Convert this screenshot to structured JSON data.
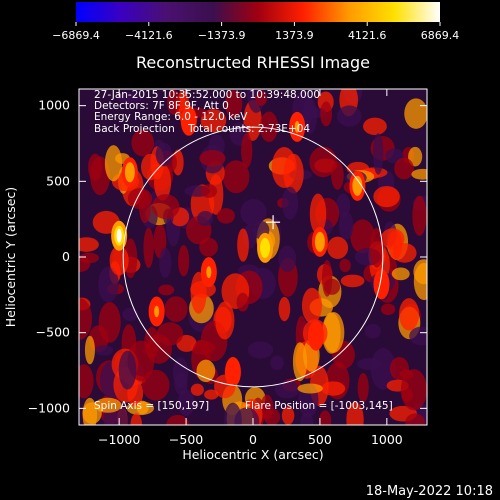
{
  "chart_data": {
    "type": "heatmap",
    "title": "Reconstructed RHESSI Image",
    "xlabel": "Heliocentric X (arcsec)",
    "ylabel": "Heliocentric Y (arcsec)",
    "xlim": [
      -1300,
      1300
    ],
    "ylim": [
      -1110,
      1110
    ],
    "x_ticks": [
      -1000,
      -500,
      0,
      500,
      1000
    ],
    "y_ticks": [
      -1000,
      -500,
      0,
      500,
      1000
    ],
    "colorbar": {
      "min": -6869.4,
      "max": 6869.4,
      "ticks": [
        "-6869.4",
        "-4121.6",
        "-1373.9",
        "1373.9",
        "4121.6",
        "6869.4"
      ],
      "colors": [
        "#0000ff",
        "#3a00c0",
        "#4a1070",
        "#3b0f4f",
        "#a00010",
        "#ff2000",
        "#ff9a00",
        "#ffe000",
        "#ffffff"
      ]
    },
    "annotations": [
      "27-Jan-2015 10:35:52.000 to 10:39:48.000",
      "Detectors: 7F 8F 9F, Att 0",
      "Energy Range: 6.0 - 12.0 keV",
      "Back Projection    Total counts: 2.73E+04"
    ],
    "spin_axis": "Spin Axis = [150,197]",
    "flare_position": "Flare Position = [-1003,145]",
    "solar_disk": {
      "center": [
        0,
        0
      ],
      "radius_arcsec": 970
    },
    "crosshair": {
      "x": 150,
      "y": 230
    },
    "bright_sources": [
      {
        "x": -1000,
        "y": 140,
        "intensity": 6500
      },
      {
        "x": 90,
        "y": 60,
        "intensity": 5800
      },
      {
        "x": 500,
        "y": 100,
        "intensity": 4200
      },
      {
        "x": -920,
        "y": 560,
        "intensity": 3500
      },
      {
        "x": 780,
        "y": 470,
        "intensity": 3600
      },
      {
        "x": -330,
        "y": -100,
        "intensity": 3200
      },
      {
        "x": 330,
        "y": 860,
        "intensity": 2800
      },
      {
        "x": -720,
        "y": -360,
        "intensity": 2600
      },
      {
        "x": 470,
        "y": -520,
        "intensity": 2500
      },
      {
        "x": -150,
        "y": -760,
        "intensity": 2400
      },
      {
        "x": 960,
        "y": -180,
        "intensity": 2300
      },
      {
        "x": -480,
        "y": 900,
        "intensity": 2100
      }
    ]
  },
  "footer": {
    "timestamp": "18-May-2022 10:18"
  }
}
